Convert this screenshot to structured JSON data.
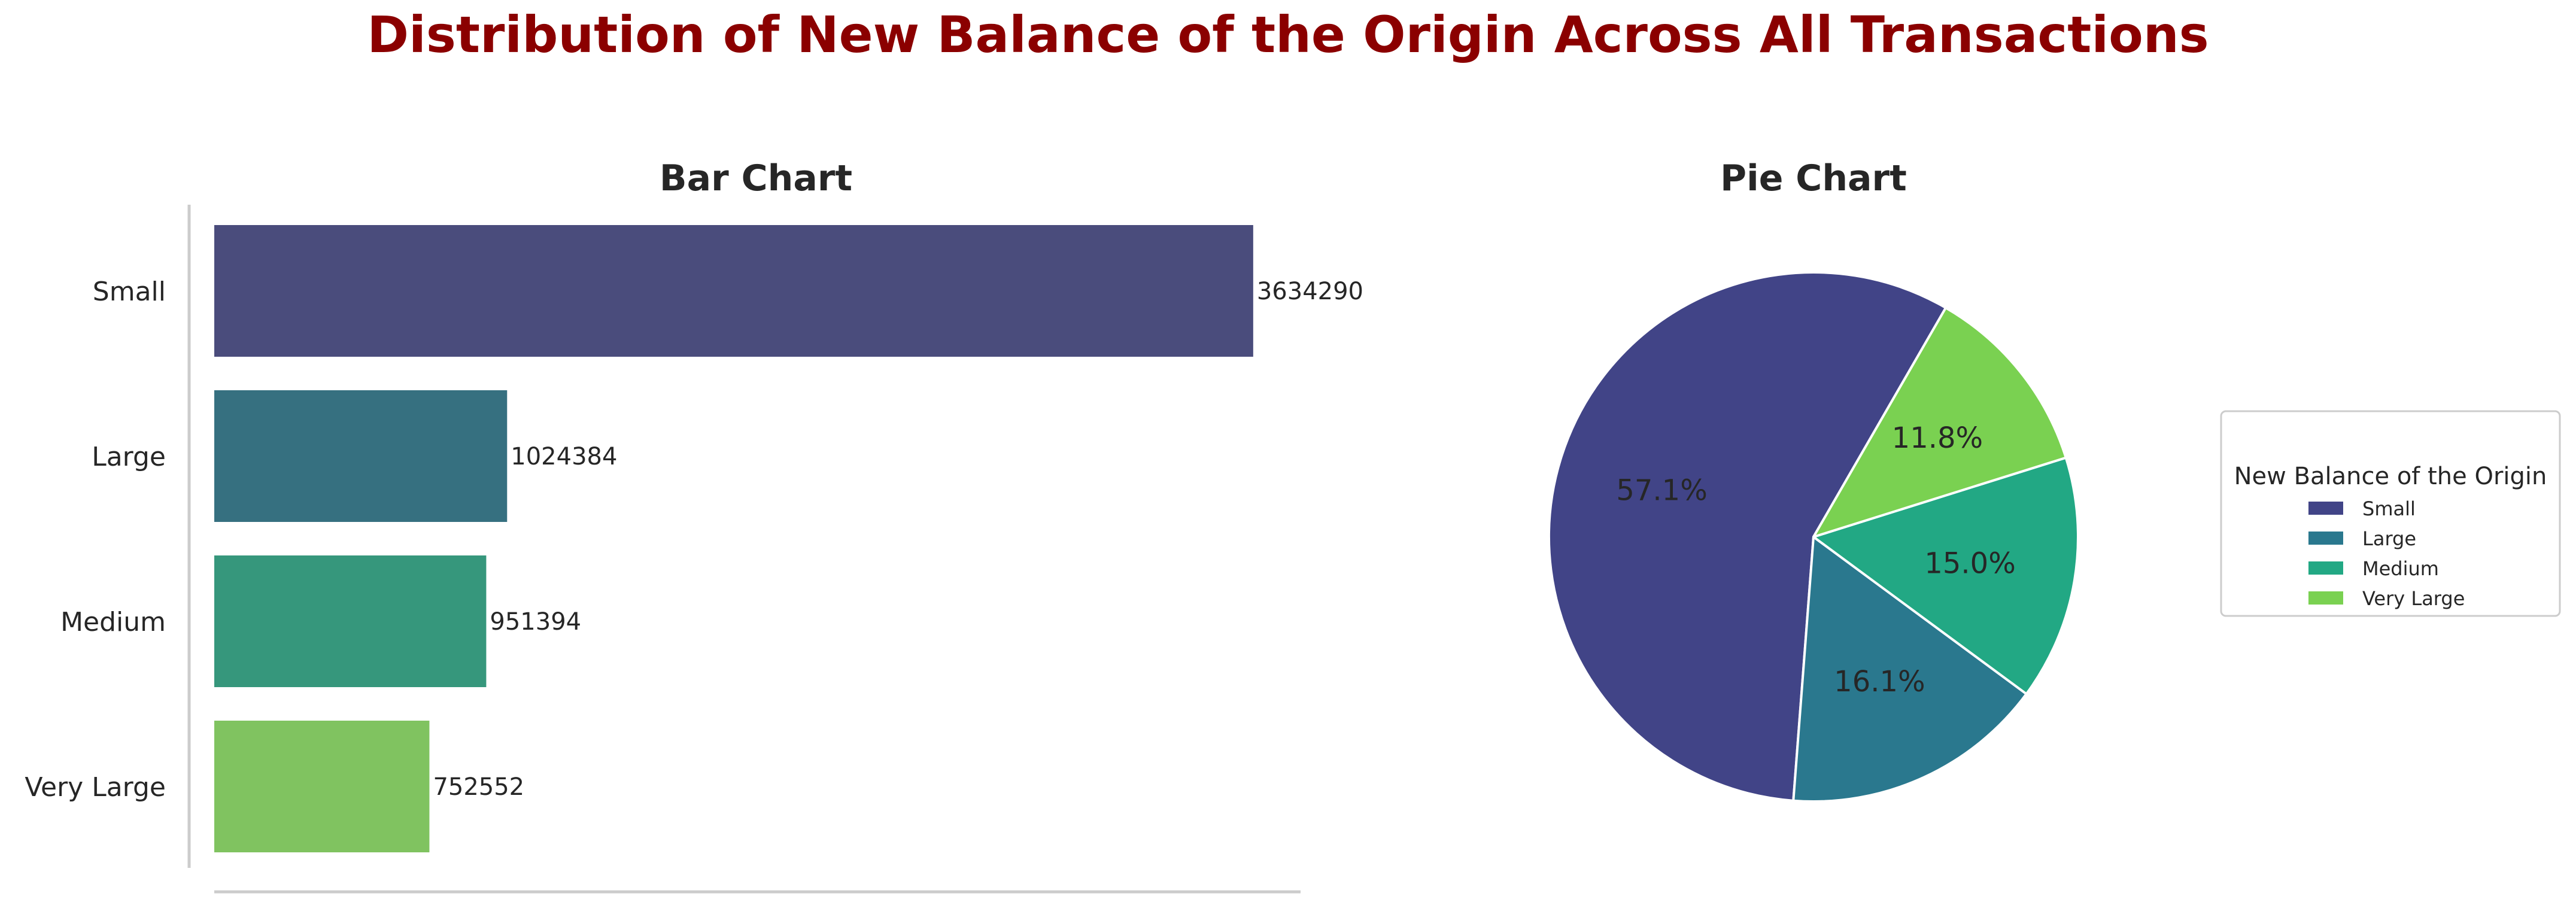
{
  "figure": {
    "title": "Distribution of New Balance of the Origin Across All Transactions",
    "title_color": "#8b0000"
  },
  "chart_data": [
    {
      "type": "bar",
      "orientation": "horizontal",
      "title": "Bar Chart",
      "categories": [
        "Small",
        "Large",
        "Medium",
        "Very Large"
      ],
      "values": [
        3634290,
        1024384,
        951394,
        752552
      ],
      "value_labels": [
        "3634290",
        "1024384",
        "951394",
        "752552"
      ],
      "colors": [
        "#4a4c7c",
        "#367080",
        "#36977c",
        "#80c360"
      ],
      "xlim": [
        0,
        3800000
      ],
      "grid": false,
      "xlabel": "",
      "ylabel": ""
    },
    {
      "type": "pie",
      "title": "Pie Chart",
      "labels": [
        "Small",
        "Large",
        "Medium",
        "Very Large"
      ],
      "values": [
        3634290,
        1024384,
        951394,
        752552
      ],
      "percent_labels": [
        "57.1%",
        "16.1%",
        "15.0%",
        "11.8%"
      ],
      "colors": [
        "#414487",
        "#2a788e",
        "#22a884",
        "#7ad151"
      ],
      "start_angle_deg": 60,
      "direction": "counterclockwise",
      "legend": {
        "title": "New Balance of the Origin",
        "placement": "center-right",
        "entries": [
          "Small",
          "Large",
          "Medium",
          "Very Large"
        ]
      }
    }
  ]
}
